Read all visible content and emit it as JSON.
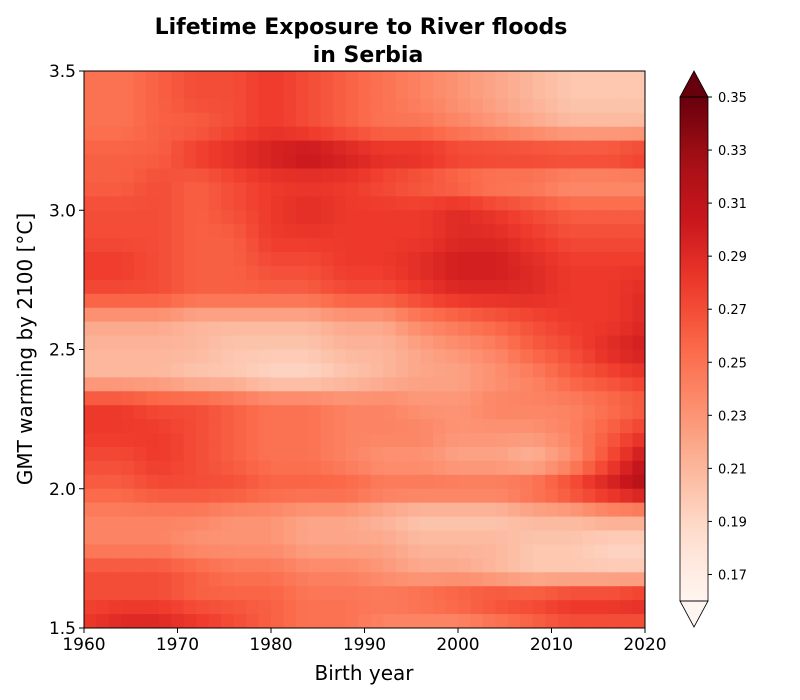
{
  "chart_data": {
    "type": "heatmap",
    "title_line1": "Lifetime Exposure to River floods",
    "title_line2": "in Serbia",
    "xlabel": "Birth year",
    "ylabel": "GMT warming by 2100 [°C]",
    "xlim": [
      1960,
      2020
    ],
    "ylim": [
      1.5,
      3.5
    ],
    "x_ticks": [
      "1960",
      "1970",
      "1980",
      "1990",
      "2000",
      "2010",
      "2020"
    ],
    "y_ticks": [
      "1.5",
      "2.0",
      "2.5",
      "3.0",
      "3.5"
    ],
    "colorbar": {
      "colormap": "Reds",
      "range": [
        0.16,
        0.35
      ],
      "extend": "both",
      "ticks": [
        "0.17",
        "0.19",
        "0.21",
        "0.23",
        "0.25",
        "0.27",
        "0.29",
        "0.31",
        "0.33",
        "0.35"
      ]
    },
    "grid": false,
    "x": [
      1960,
      1964,
      1968,
      1972,
      1976,
      1980,
      1984,
      1988,
      1992,
      1996,
      2000,
      2004,
      2008,
      2012,
      2016,
      2020
    ],
    "y": [
      3.4,
      3.3,
      3.2,
      3.1,
      3.0,
      2.9,
      2.8,
      2.7,
      2.6,
      2.5,
      2.4,
      2.3,
      2.2,
      2.1,
      2.0,
      1.9,
      1.8,
      1.7,
      1.6,
      1.55
    ],
    "values": [
      [
        0.25,
        0.25,
        0.26,
        0.27,
        0.27,
        0.28,
        0.27,
        0.26,
        0.25,
        0.24,
        0.23,
        0.22,
        0.21,
        0.2,
        0.2,
        0.2
      ],
      [
        0.25,
        0.25,
        0.26,
        0.26,
        0.27,
        0.28,
        0.27,
        0.26,
        0.25,
        0.25,
        0.24,
        0.23,
        0.22,
        0.21,
        0.21,
        0.21
      ],
      [
        0.26,
        0.26,
        0.26,
        0.28,
        0.29,
        0.3,
        0.31,
        0.3,
        0.29,
        0.29,
        0.28,
        0.28,
        0.28,
        0.28,
        0.28,
        0.29
      ],
      [
        0.26,
        0.26,
        0.27,
        0.26,
        0.27,
        0.28,
        0.28,
        0.28,
        0.27,
        0.26,
        0.25,
        0.24,
        0.24,
        0.23,
        0.23,
        0.23
      ],
      [
        0.27,
        0.27,
        0.27,
        0.26,
        0.27,
        0.28,
        0.29,
        0.28,
        0.28,
        0.28,
        0.29,
        0.28,
        0.27,
        0.26,
        0.26,
        0.26
      ],
      [
        0.27,
        0.27,
        0.27,
        0.26,
        0.26,
        0.28,
        0.28,
        0.28,
        0.28,
        0.28,
        0.29,
        0.29,
        0.28,
        0.27,
        0.27,
        0.27
      ],
      [
        0.28,
        0.28,
        0.27,
        0.26,
        0.26,
        0.27,
        0.27,
        0.28,
        0.28,
        0.29,
        0.3,
        0.3,
        0.29,
        0.28,
        0.28,
        0.28
      ],
      [
        0.27,
        0.27,
        0.27,
        0.26,
        0.26,
        0.26,
        0.26,
        0.27,
        0.27,
        0.28,
        0.29,
        0.29,
        0.29,
        0.28,
        0.28,
        0.29
      ],
      [
        0.22,
        0.22,
        0.22,
        0.21,
        0.21,
        0.21,
        0.21,
        0.22,
        0.22,
        0.24,
        0.25,
        0.26,
        0.27,
        0.28,
        0.28,
        0.29
      ],
      [
        0.21,
        0.21,
        0.21,
        0.21,
        0.2,
        0.2,
        0.2,
        0.21,
        0.21,
        0.22,
        0.23,
        0.24,
        0.26,
        0.27,
        0.29,
        0.3
      ],
      [
        0.21,
        0.21,
        0.21,
        0.2,
        0.2,
        0.19,
        0.19,
        0.2,
        0.21,
        0.22,
        0.22,
        0.23,
        0.24,
        0.26,
        0.27,
        0.28
      ],
      [
        0.28,
        0.28,
        0.27,
        0.27,
        0.26,
        0.25,
        0.25,
        0.24,
        0.24,
        0.23,
        0.23,
        0.24,
        0.24,
        0.24,
        0.25,
        0.26
      ],
      [
        0.28,
        0.28,
        0.28,
        0.27,
        0.26,
        0.25,
        0.25,
        0.24,
        0.24,
        0.24,
        0.23,
        0.23,
        0.23,
        0.24,
        0.26,
        0.28
      ],
      [
        0.27,
        0.27,
        0.28,
        0.27,
        0.26,
        0.25,
        0.25,
        0.24,
        0.23,
        0.23,
        0.22,
        0.22,
        0.21,
        0.23,
        0.27,
        0.31
      ],
      [
        0.26,
        0.26,
        0.27,
        0.27,
        0.27,
        0.26,
        0.26,
        0.26,
        0.25,
        0.25,
        0.25,
        0.25,
        0.26,
        0.28,
        0.3,
        0.32
      ],
      [
        0.24,
        0.24,
        0.24,
        0.24,
        0.23,
        0.23,
        0.22,
        0.22,
        0.21,
        0.2,
        0.2,
        0.2,
        0.21,
        0.21,
        0.22,
        0.22
      ],
      [
        0.24,
        0.24,
        0.24,
        0.23,
        0.23,
        0.23,
        0.22,
        0.22,
        0.22,
        0.21,
        0.21,
        0.21,
        0.2,
        0.2,
        0.19,
        0.19
      ],
      [
        0.27,
        0.27,
        0.27,
        0.26,
        0.25,
        0.25,
        0.24,
        0.24,
        0.23,
        0.22,
        0.22,
        0.21,
        0.2,
        0.2,
        0.2,
        0.2
      ],
      [
        0.27,
        0.27,
        0.27,
        0.26,
        0.26,
        0.26,
        0.25,
        0.25,
        0.25,
        0.26,
        0.27,
        0.28,
        0.28,
        0.29,
        0.29,
        0.3
      ],
      [
        0.28,
        0.29,
        0.29,
        0.28,
        0.27,
        0.26,
        0.25,
        0.25,
        0.24,
        0.24,
        0.24,
        0.25,
        0.26,
        0.27,
        0.27,
        0.27
      ]
    ]
  }
}
